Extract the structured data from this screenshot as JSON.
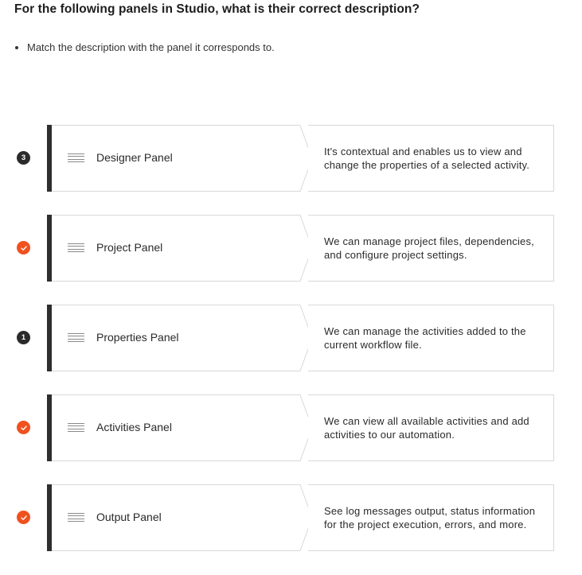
{
  "question": "For the following panels in Studio, what is their correct description?",
  "instruction": "Match the description with the panel it corresponds to.",
  "colors": {
    "accent": "#f0511f",
    "dark": "#2b2b2b",
    "border": "#d8d8d8"
  },
  "rows": [
    {
      "badge_type": "number",
      "badge": "3",
      "panel": "Designer Panel",
      "description": "It's contextual and enables us to view and change the properties of a selected activity."
    },
    {
      "badge_type": "check",
      "badge": "",
      "panel": "Project Panel",
      "description": "We can manage project files, dependencies, and configure project settings."
    },
    {
      "badge_type": "number",
      "badge": "1",
      "panel": "Properties Panel",
      "description": "We can manage the activities added to the current workflow file."
    },
    {
      "badge_type": "check",
      "badge": "",
      "panel": "Activities Panel",
      "description": "We can view all available activities and add activities to our automation."
    },
    {
      "badge_type": "check",
      "badge": "",
      "panel": "Output Panel",
      "description": "See log messages output, status information for the project execution, errors, and more."
    }
  ]
}
